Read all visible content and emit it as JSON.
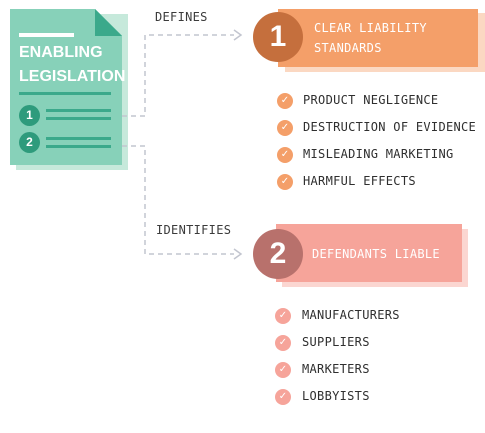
{
  "document": {
    "title_line1": "ENABLING",
    "title_line2": "LEGISLATION",
    "items": [
      "1",
      "2"
    ]
  },
  "connectors": {
    "label_1": "DEFINES",
    "label_2": "IDENTIFIES"
  },
  "section_1": {
    "number": "1",
    "title_line1": "CLEAR LIABILITY",
    "title_line2": "STANDARDS",
    "color": "#f49f69",
    "circle_color": "#c56f3d",
    "items": [
      "PRODUCT NEGLIGENCE",
      "DESTRUCTION OF EVIDENCE",
      "MISLEADING MARKETING",
      "HARMFUL EFFECTS"
    ]
  },
  "section_2": {
    "number": "2",
    "title": "DEFENDANTS LIABLE",
    "color": "#f6a49a",
    "circle_color": "#b8716c",
    "items": [
      "MANUFACTURERS",
      "SUPPLIERS",
      "MARKETERS",
      "LOBBYISTS"
    ]
  }
}
